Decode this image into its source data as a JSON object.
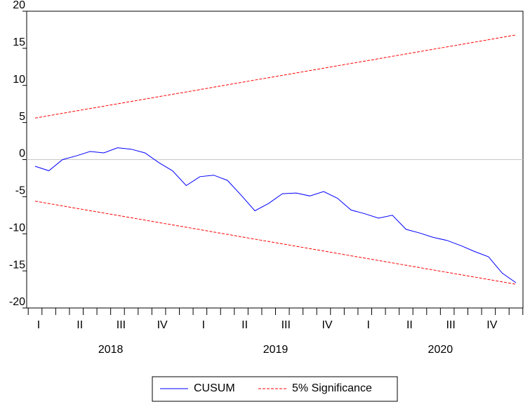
{
  "chart_data": {
    "type": "line",
    "categories": [
      "I",
      null,
      null,
      "II",
      null,
      null,
      "III",
      null,
      null,
      "IV",
      null,
      null,
      "I",
      null,
      null,
      "II",
      null,
      null,
      "III",
      null,
      null,
      "IV",
      null,
      null,
      "I",
      null,
      null,
      "II",
      null,
      null,
      "III",
      null,
      null,
      "IV",
      null,
      null
    ],
    "years": [
      "2018",
      "2019",
      "2020"
    ],
    "series": [
      {
        "name": "CUSUM",
        "color": "#0000ff",
        "dash": false,
        "values": [
          -0.9,
          -1.5,
          0.0,
          0.5,
          1.1,
          0.9,
          1.6,
          1.4,
          0.9,
          -0.4,
          -1.5,
          -3.5,
          -2.3,
          -2.1,
          -2.8,
          -4.8,
          -6.9,
          -5.9,
          -4.6,
          -4.5,
          -4.9,
          -4.3,
          -5.2,
          -6.8,
          -7.3,
          -7.9,
          -7.5,
          -9.4,
          -9.9,
          -10.5,
          -10.9,
          -11.6,
          -12.4,
          -13.1,
          -15.3,
          -16.6
        ]
      },
      {
        "name": "5% Significance",
        "color": "#ff0000",
        "dash": true,
        "values": [
          5.6,
          5.92,
          6.24,
          6.56,
          6.88,
          7.2,
          7.52,
          7.84,
          8.16,
          8.48,
          8.8,
          9.12,
          9.44,
          9.76,
          10.08,
          10.4,
          10.72,
          11.04,
          11.36,
          11.68,
          12.0,
          12.32,
          12.64,
          12.96,
          13.28,
          13.6,
          13.92,
          14.24,
          14.56,
          14.88,
          15.2,
          15.52,
          15.84,
          16.16,
          16.48,
          16.8
        ],
        "values_lower": [
          -5.6,
          -5.92,
          -6.24,
          -6.56,
          -6.88,
          -7.2,
          -7.52,
          -7.84,
          -8.16,
          -8.48,
          -8.8,
          -9.12,
          -9.44,
          -9.76,
          -10.08,
          -10.4,
          -10.72,
          -11.04,
          -11.36,
          -11.68,
          -12.0,
          -12.32,
          -12.64,
          -12.96,
          -13.28,
          -13.6,
          -13.92,
          -14.24,
          -14.56,
          -14.88,
          -15.2,
          -15.52,
          -15.84,
          -16.16,
          -16.48,
          -16.8
        ]
      }
    ],
    "ylim": [
      -20,
      20
    ],
    "yticks": [
      -20,
      -15,
      -10,
      -5,
      0,
      5,
      10,
      15,
      20
    ],
    "zero_line": true
  }
}
